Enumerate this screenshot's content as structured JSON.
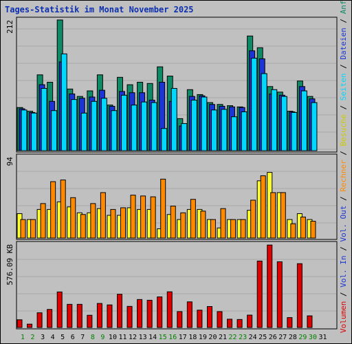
{
  "title": "Tages-Statistik im Monat November 2025",
  "colors": {
    "background": "#c0c0c0",
    "grid": "#a8a8a8",
    "panel_border": "#000000",
    "anfragen": "#0e8a66",
    "dateien": "#1a34d6",
    "seiten": "#00d8ff",
    "besuche": "#ffff30",
    "rechner": "#ff8a00",
    "volumen": "#e00000",
    "weekend_day": "#008000",
    "weekday": "#000000"
  },
  "side_label": {
    "parts": [
      {
        "text": "Volumen",
        "color": "#e00000"
      },
      {
        "text": " / ",
        "color": "#000000"
      },
      {
        "text": "Vol. In",
        "color": "#1a34d6"
      },
      {
        "text": " / ",
        "color": "#000000"
      },
      {
        "text": "Vol. Out",
        "color": "#1a34d6"
      },
      {
        "text": " / ",
        "color": "#000000"
      },
      {
        "text": "Rechner",
        "color": "#ff8a00"
      },
      {
        "text": " / ",
        "color": "#000000"
      },
      {
        "text": "Besuche",
        "color": "#cccc00"
      },
      {
        "text": " / ",
        "color": "#000000"
      },
      {
        "text": "Seiten",
        "color": "#00d8ff"
      },
      {
        "text": " / ",
        "color": "#000000"
      },
      {
        "text": "Dateien",
        "color": "#1a34d6"
      },
      {
        "text": " / ",
        "color": "#000000"
      },
      {
        "text": "Anfragen",
        "color": "#0e8a66"
      }
    ]
  },
  "chart_data": [
    {
      "type": "bar",
      "ylim": [
        0,
        212
      ],
      "max_label": "212",
      "categories": [
        "1",
        "2",
        "3",
        "4",
        "5",
        "6",
        "7",
        "8",
        "9",
        "10",
        "11",
        "12",
        "13",
        "14",
        "15",
        "16",
        "17",
        "18",
        "19",
        "20",
        "21",
        "22",
        "23",
        "24",
        "25",
        "26",
        "27",
        "28",
        "29",
        "30",
        "31"
      ],
      "weekend_days": [
        "1",
        "2",
        "8",
        "9",
        "15",
        "16",
        "22",
        "23",
        "29",
        "30"
      ],
      "series": [
        {
          "name": "Anfragen",
          "values": [
            70,
            64,
            123,
            111,
            212,
            100,
            88,
            97,
            123,
            74,
            119,
            107,
            111,
            109,
            136,
            121,
            52,
            99,
            91,
            78,
            75,
            73,
            71,
            186,
            167,
            104,
            95,
            64,
            113,
            88,
            0
          ]
        },
        {
          "name": "Dateien",
          "values": [
            68,
            62,
            107,
            80,
            144,
            92,
            85,
            87,
            98,
            72,
            96,
            94,
            94,
            82,
            111,
            80,
            40,
            88,
            89,
            75,
            72,
            71,
            70,
            162,
            149,
            92,
            90,
            63,
            104,
            84,
            0
          ]
        },
        {
          "name": "Seiten",
          "values": [
            66,
            61,
            101,
            65,
            157,
            83,
            61,
            80,
            85,
            65,
            90,
            74,
            79,
            78,
            36,
            101,
            44,
            82,
            87,
            66,
            67,
            55,
            63,
            150,
            125,
            99,
            88,
            62,
            97,
            78,
            0
          ]
        }
      ]
    },
    {
      "type": "bar",
      "ylim": [
        0,
        94
      ],
      "max_label": "94",
      "categories": [
        "1",
        "2",
        "3",
        "4",
        "5",
        "6",
        "7",
        "8",
        "9",
        "10",
        "11",
        "12",
        "13",
        "14",
        "15",
        "16",
        "17",
        "18",
        "19",
        "20",
        "21",
        "22",
        "23",
        "24",
        "25",
        "26",
        "27",
        "28",
        "29",
        "30",
        "31"
      ],
      "series": [
        {
          "name": "Besuche",
          "values": [
            29,
            22,
            34,
            34,
            43,
            37,
            30,
            30,
            35,
            27,
            27,
            36,
            34,
            34,
            11,
            28,
            22,
            34,
            34,
            22,
            12,
            22,
            22,
            33,
            68,
            78,
            54,
            22,
            29,
            22,
            0
          ]
        },
        {
          "name": "Rechner",
          "values": [
            22,
            22,
            41,
            67,
            69,
            48,
            28,
            41,
            54,
            34,
            36,
            51,
            50,
            49,
            70,
            38,
            30,
            46,
            32,
            22,
            35,
            22,
            22,
            45,
            74,
            54,
            54,
            17,
            25,
            20,
            0
          ]
        }
      ]
    },
    {
      "type": "bar",
      "ylim": [
        0,
        576.09
      ],
      "max_label": "576.09 KB",
      "categories": [
        "1",
        "2",
        "3",
        "4",
        "5",
        "6",
        "7",
        "8",
        "9",
        "10",
        "11",
        "12",
        "13",
        "14",
        "15",
        "16",
        "17",
        "18",
        "19",
        "20",
        "21",
        "22",
        "23",
        "24",
        "25",
        "26",
        "27",
        "28",
        "29",
        "30",
        "31"
      ],
      "series": [
        {
          "name": "Volumen",
          "values": [
            53,
            23,
            101,
            124,
            244,
            159,
            159,
            84,
            165,
            155,
            228,
            145,
            192,
            187,
            210,
            245,
            109,
            176,
            119,
            144,
            109,
            57,
            55,
            85,
            456,
            566,
            451,
            68,
            438,
            80,
            0
          ]
        }
      ]
    }
  ]
}
